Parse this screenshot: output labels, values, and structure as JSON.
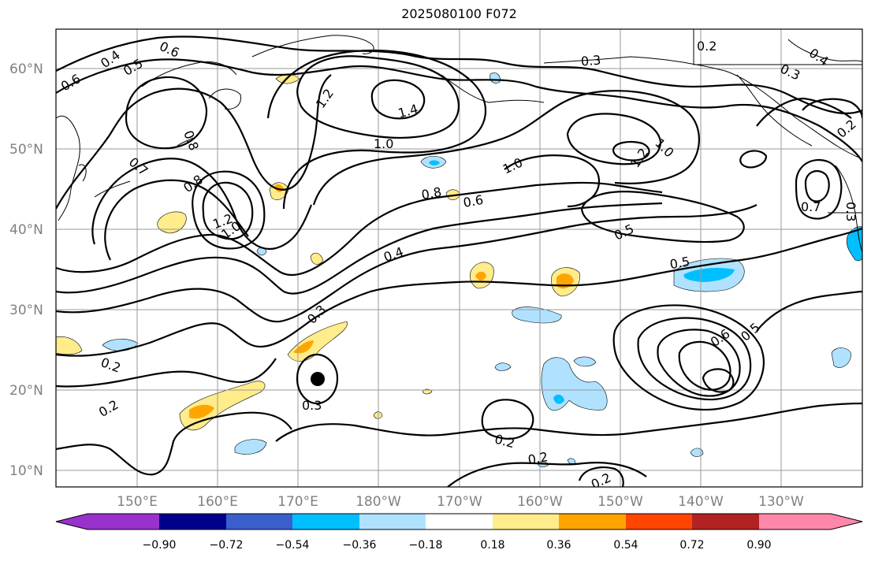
{
  "title": "2025080100 F072",
  "lat_labels": [
    "60°N",
    "50°N",
    "40°N",
    "30°N",
    "20°N",
    "10°N"
  ],
  "lon_labels": [
    "150°E",
    "160°E",
    "170°E",
    "180°W",
    "170°W",
    "160°W",
    "150°W",
    "140°W",
    "130°W"
  ],
  "colorbar": {
    "colors": [
      "#9932cc",
      "#00008b",
      "#3a5fcd",
      "#00bfff",
      "#b0e2ff",
      "#ffffff",
      "#ffec8b",
      "#ffa500",
      "#ff4500",
      "#b22222",
      "#ff88aa"
    ],
    "tick_labels": [
      "−0.90",
      "−0.72",
      "−0.54",
      "−0.36",
      "−0.18",
      "0.18",
      "0.36",
      "0.54",
      "0.72",
      "0.90"
    ]
  },
  "contour_labels": [
    "0.6",
    "0.4",
    "0.5",
    "0.6",
    "0.8",
    "0.7",
    "0.8",
    "1.2",
    "1.0",
    "1.2",
    "1.4",
    "1.0",
    "1.0",
    "0.8",
    "0.6",
    "0.4",
    "0.3",
    "0.2",
    "0.2",
    "0.3",
    "0.3",
    "0.2",
    "0.4",
    "0.3",
    "0.2",
    "1.0",
    "1.2",
    "0.5",
    "0.5",
    "0.6",
    "0.5",
    "0.2",
    "0.2",
    "0.2",
    "0.7",
    "0.3"
  ],
  "marker": "typhoon-center-marker"
}
